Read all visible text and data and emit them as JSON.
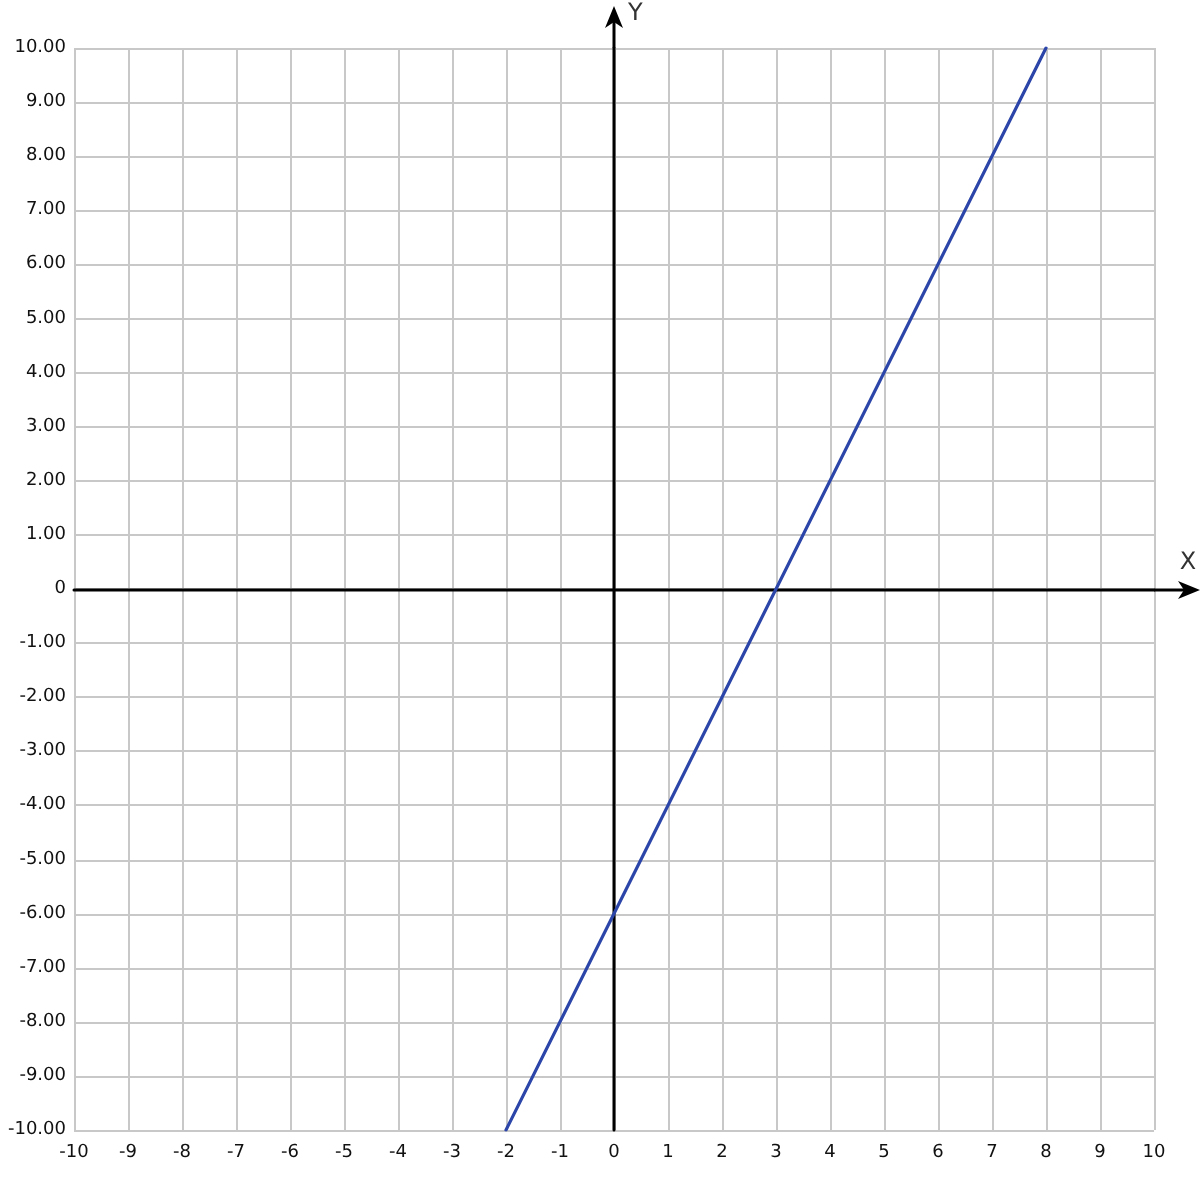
{
  "chart_data": {
    "type": "line",
    "xlabel": "X",
    "ylabel": "Y",
    "x": [
      -2,
      8
    ],
    "values": [
      -10,
      10
    ],
    "color": "#2b45a8",
    "xlim": [
      -10,
      10
    ],
    "ylim": [
      -10,
      10
    ],
    "xticks": [
      -10,
      -9,
      -8,
      -7,
      -6,
      -5,
      -4,
      -3,
      -2,
      -1,
      0,
      1,
      2,
      3,
      4,
      5,
      6,
      7,
      8,
      9,
      10
    ],
    "yticks": [
      {
        "value": -10,
        "label": "-10.00"
      },
      {
        "value": -9,
        "label": "-9.00"
      },
      {
        "value": -8,
        "label": "-8.00"
      },
      {
        "value": -7,
        "label": "-7.00"
      },
      {
        "value": -6,
        "label": "-6.00"
      },
      {
        "value": -5,
        "label": "-5.00"
      },
      {
        "value": -4,
        "label": "-4.00"
      },
      {
        "value": -3,
        "label": "-3.00"
      },
      {
        "value": -2,
        "label": "-2.00"
      },
      {
        "value": -1,
        "label": "-1.00"
      },
      0,
      {
        "value": 1,
        "label": "1.00"
      },
      {
        "value": 2,
        "label": "2.00"
      },
      {
        "value": 3,
        "label": "3.00"
      },
      {
        "value": 4,
        "label": "4.00"
      },
      {
        "value": 5,
        "label": "5.00"
      },
      {
        "value": 6,
        "label": "6.00"
      },
      {
        "value": 7,
        "label": "7.00"
      },
      {
        "value": 8,
        "label": "8.00"
      },
      {
        "value": 9,
        "label": "9.00"
      },
      {
        "value": 10,
        "label": "10.00"
      }
    ],
    "grid": true,
    "marker": "none",
    "line_style": "solid"
  }
}
